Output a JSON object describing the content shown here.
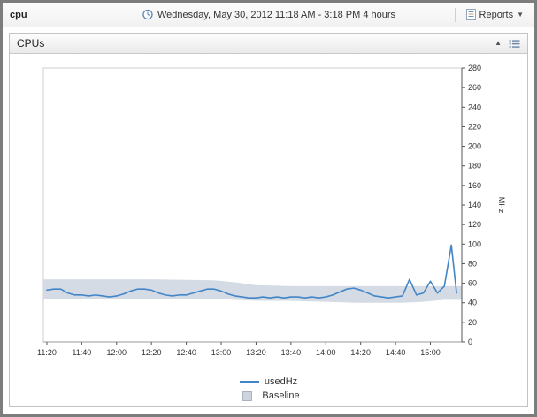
{
  "header": {
    "title": "cpu",
    "time_range": "Wednesday, May 30, 2012 11:18 AM - 3:18 PM 4 hours",
    "reports_label": "Reports"
  },
  "panel": {
    "title": "CPUs"
  },
  "chart_data": {
    "type": "line",
    "title": "",
    "xlabel": "",
    "ylabel": "MHz",
    "ylim": [
      0,
      280
    ],
    "y_ticks": [
      0,
      20,
      40,
      60,
      80,
      100,
      120,
      140,
      160,
      180,
      200,
      220,
      240,
      260,
      280
    ],
    "x_start": "11:18",
    "x_end": "15:18",
    "x_ticks": [
      "11:20",
      "11:40",
      "12:00",
      "12:20",
      "12:40",
      "13:00",
      "13:20",
      "13:40",
      "14:00",
      "14:20",
      "14:40",
      "15:00"
    ],
    "grid": "off",
    "legend_position": "bottom",
    "series": [
      {
        "name": "usedHz",
        "color": "#4285c8",
        "points": [
          [
            "11:20",
            53
          ],
          [
            "11:24",
            54
          ],
          [
            "11:28",
            54
          ],
          [
            "11:32",
            50
          ],
          [
            "11:36",
            48
          ],
          [
            "11:40",
            48
          ],
          [
            "11:44",
            47
          ],
          [
            "11:48",
            48
          ],
          [
            "11:52",
            47
          ],
          [
            "11:56",
            46
          ],
          [
            "12:00",
            47
          ],
          [
            "12:04",
            49
          ],
          [
            "12:08",
            52
          ],
          [
            "12:12",
            54
          ],
          [
            "12:16",
            54
          ],
          [
            "12:20",
            53
          ],
          [
            "12:24",
            50
          ],
          [
            "12:28",
            48
          ],
          [
            "12:32",
            47
          ],
          [
            "12:36",
            48
          ],
          [
            "12:40",
            48
          ],
          [
            "12:44",
            50
          ],
          [
            "12:48",
            52
          ],
          [
            "12:52",
            54
          ],
          [
            "12:56",
            54
          ],
          [
            "13:00",
            52
          ],
          [
            "13:04",
            49
          ],
          [
            "13:08",
            47
          ],
          [
            "13:12",
            46
          ],
          [
            "13:16",
            45
          ],
          [
            "13:20",
            45
          ],
          [
            "13:24",
            46
          ],
          [
            "13:28",
            45
          ],
          [
            "13:32",
            46
          ],
          [
            "13:36",
            45
          ],
          [
            "13:40",
            46
          ],
          [
            "13:44",
            46
          ],
          [
            "13:48",
            45
          ],
          [
            "13:52",
            46
          ],
          [
            "13:56",
            45
          ],
          [
            "14:00",
            46
          ],
          [
            "14:04",
            48
          ],
          [
            "14:08",
            51
          ],
          [
            "14:12",
            54
          ],
          [
            "14:16",
            55
          ],
          [
            "14:20",
            53
          ],
          [
            "14:24",
            50
          ],
          [
            "14:28",
            47
          ],
          [
            "14:32",
            46
          ],
          [
            "14:36",
            45
          ],
          [
            "14:40",
            46
          ],
          [
            "14:44",
            47
          ],
          [
            "14:48",
            64
          ],
          [
            "14:52",
            48
          ],
          [
            "14:56",
            50
          ],
          [
            "15:00",
            62
          ],
          [
            "15:04",
            50
          ],
          [
            "15:08",
            57
          ],
          [
            "15:12",
            99
          ],
          [
            "15:15",
            50
          ]
        ]
      }
    ],
    "baseline": {
      "name": "Baseline",
      "color": "#ccd5df",
      "border_color": "#a9b3bd",
      "points": [
        [
          "11:18",
          44,
          64
        ],
        [
          "12:20",
          44,
          64
        ],
        [
          "12:56",
          44,
          63
        ],
        [
          "13:08",
          43,
          61
        ],
        [
          "13:20",
          42,
          58
        ],
        [
          "13:40",
          42,
          57
        ],
        [
          "14:00",
          41,
          57
        ],
        [
          "14:16",
          40,
          57
        ],
        [
          "14:44",
          40,
          57
        ],
        [
          "14:56",
          41,
          57
        ],
        [
          "15:08",
          43,
          57
        ],
        [
          "15:18",
          43,
          57
        ]
      ]
    }
  }
}
